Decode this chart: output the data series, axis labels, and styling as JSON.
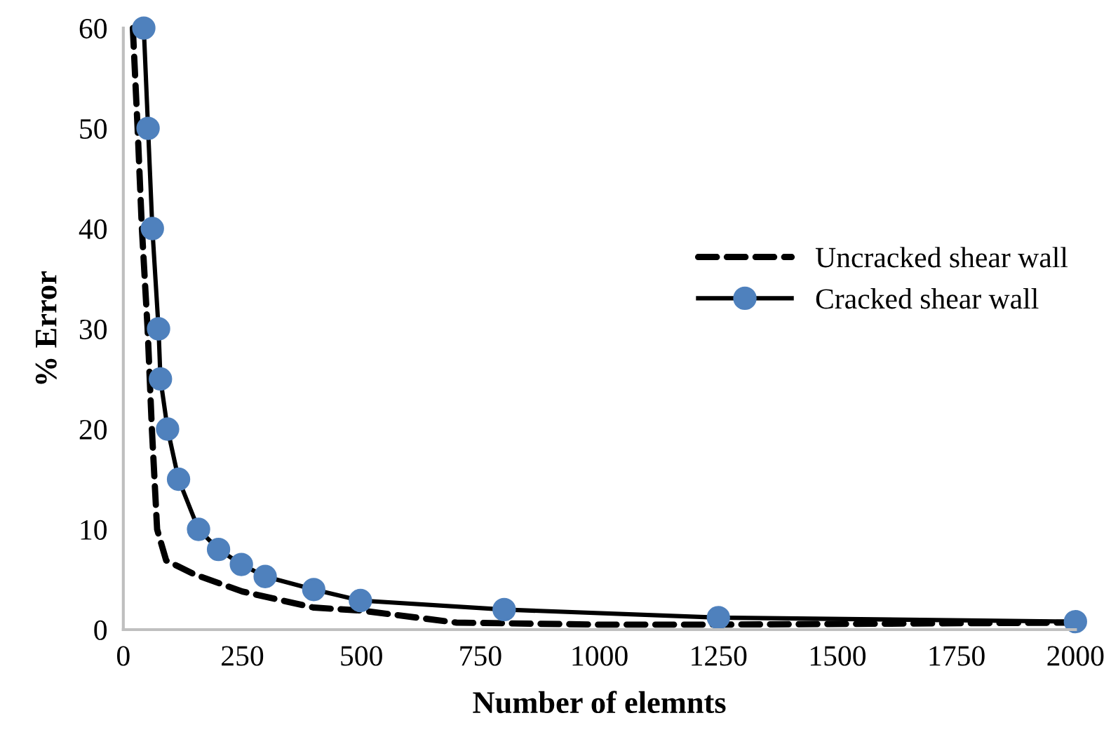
{
  "chart_data": {
    "type": "line",
    "xlabel": "Number of elemnts",
    "ylabel": "% Error",
    "xlim": [
      0,
      2000
    ],
    "xticks": [
      0,
      250,
      500,
      750,
      1000,
      1250,
      1500,
      1750,
      2000
    ],
    "ylim": [
      0,
      60
    ],
    "yticks": [
      0,
      10,
      20,
      30,
      40,
      50,
      60
    ],
    "grid": false,
    "legend": "right",
    "series": [
      {
        "name": "Uncracked shear wall",
        "color": "#000000",
        "line_style": "dashed",
        "marker": "none",
        "x": [
          20,
          30,
          39,
          51,
          60,
          71,
          90,
          150,
          250,
          400,
          500,
          700,
          1000,
          1250,
          2000
        ],
        "values": [
          60,
          50,
          40,
          30,
          20,
          10,
          6.9,
          5.5,
          3.8,
          2.2,
          1.9,
          0.7,
          0.5,
          0.5,
          0.7
        ]
      },
      {
        "name": "Cracked shear wall",
        "color": "#4f81bd",
        "line_style": "solid",
        "marker": "circle",
        "x": [
          43,
          52,
          61,
          74,
          78,
          93,
          116,
          158,
          200,
          248,
          298,
          400,
          498,
          800,
          1250,
          2000
        ],
        "values": [
          60,
          50,
          40,
          30,
          25,
          20,
          15,
          10,
          8,
          6.5,
          5.3,
          4,
          2.9,
          2,
          1.2,
          0.8
        ]
      }
    ]
  }
}
